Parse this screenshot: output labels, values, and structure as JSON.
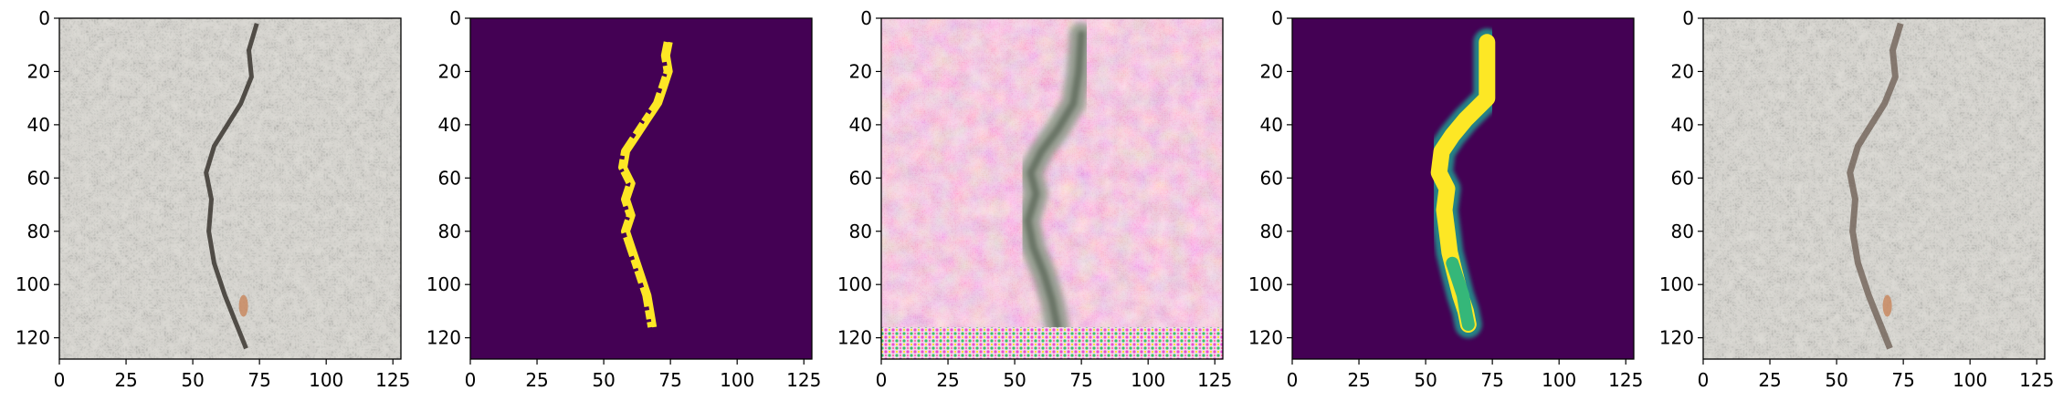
{
  "chart_data": [
    {
      "type": "image",
      "content": "asphalt photograph with a vertical crack",
      "xlim": [
        0,
        128
      ],
      "ylim": [
        128,
        0
      ],
      "x_ticks": [
        "0",
        "25",
        "50",
        "75",
        "100",
        "125"
      ],
      "y_ticks": [
        "0",
        "20",
        "40",
        "60",
        "80",
        "100",
        "120"
      ]
    },
    {
      "type": "heatmap",
      "content": "binary crack mask",
      "colormap": "viridis",
      "colors": {
        "background": "#440154",
        "foreground": "#fde725"
      },
      "xlim": [
        0,
        128
      ],
      "ylim": [
        128,
        0
      ],
      "crack_path": [
        [
          74,
          9
        ],
        [
          73,
          14
        ],
        [
          74,
          20
        ],
        [
          72,
          26
        ],
        [
          70,
          32
        ],
        [
          66,
          38
        ],
        [
          62,
          44
        ],
        [
          58,
          50
        ],
        [
          57,
          56
        ],
        [
          60,
          62
        ],
        [
          58,
          68
        ],
        [
          60,
          74
        ],
        [
          58,
          80
        ],
        [
          60,
          86
        ],
        [
          62,
          92
        ],
        [
          64,
          98
        ],
        [
          66,
          104
        ],
        [
          67,
          110
        ],
        [
          68,
          116
        ]
      ],
      "x_ticks": [
        "0",
        "25",
        "50",
        "75",
        "100",
        "125"
      ],
      "y_ticks": [
        "0",
        "20",
        "40",
        "60",
        "80",
        "100",
        "120"
      ]
    },
    {
      "type": "image",
      "content": "generated crack image with pink noise background",
      "xlim": [
        0,
        128
      ],
      "ylim": [
        128,
        0
      ],
      "x_ticks": [
        "0",
        "25",
        "50",
        "75",
        "100",
        "125"
      ],
      "y_ticks": [
        "0",
        "20",
        "40",
        "60",
        "80",
        "100",
        "120"
      ]
    },
    {
      "type": "heatmap",
      "content": "predicted crack mask",
      "colormap": "viridis",
      "colors": {
        "background": "#440154",
        "foreground": "#fde725",
        "edge": "#21918c"
      },
      "xlim": [
        0,
        128
      ],
      "ylim": [
        128,
        0
      ],
      "crack_path": [
        [
          73,
          9
        ],
        [
          73,
          20
        ],
        [
          73,
          30
        ],
        [
          65,
          38
        ],
        [
          60,
          44
        ],
        [
          56,
          50
        ],
        [
          55,
          58
        ],
        [
          58,
          64
        ],
        [
          57,
          72
        ],
        [
          58,
          80
        ],
        [
          59,
          88
        ],
        [
          61,
          96
        ],
        [
          63,
          104
        ],
        [
          65,
          110
        ],
        [
          66,
          115
        ]
      ],
      "x_ticks": [
        "0",
        "25",
        "50",
        "75",
        "100",
        "125"
      ],
      "y_ticks": [
        "0",
        "20",
        "40",
        "60",
        "80",
        "100",
        "120"
      ]
    },
    {
      "type": "image",
      "content": "asphalt photograph with reconstructed crack",
      "xlim": [
        0,
        128
      ],
      "ylim": [
        128,
        0
      ],
      "x_ticks": [
        "0",
        "25",
        "50",
        "75",
        "100",
        "125"
      ],
      "y_ticks": [
        "0",
        "20",
        "40",
        "60",
        "80",
        "100",
        "120"
      ]
    }
  ]
}
